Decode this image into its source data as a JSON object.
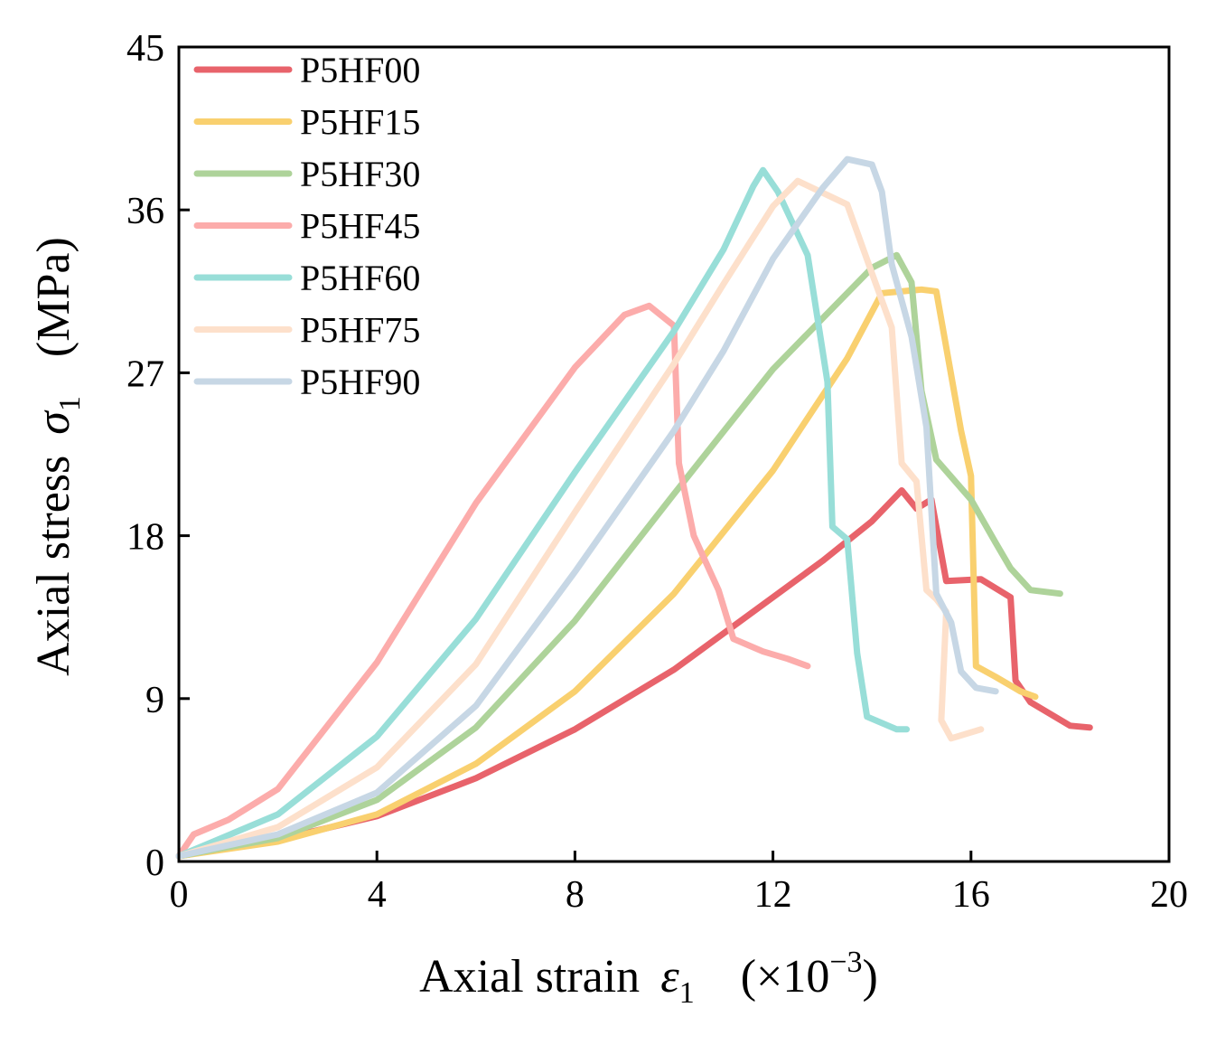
{
  "chart_data": {
    "type": "line",
    "title": "",
    "xlabel": {
      "prefix": "Axial strain",
      "symbol": "ε",
      "subscript": "1",
      "unit": "(×10",
      "unit_exp": "−3",
      "unit_close": ")"
    },
    "ylabel": {
      "prefix": "Axial stress",
      "symbol": "σ",
      "subscript": "1",
      "unit": "(MPa)"
    },
    "xlim": [
      0,
      20
    ],
    "ylim": [
      0,
      45
    ],
    "xticks": [
      0,
      4,
      8,
      12,
      16,
      20
    ],
    "yticks": [
      0,
      9,
      18,
      27,
      36,
      45
    ],
    "grid": false,
    "legend_position": "top-left",
    "series": [
      {
        "name": "P5HF00",
        "color": "#e8636b",
        "points": [
          [
            0,
            0.3
          ],
          [
            2,
            1.2
          ],
          [
            4,
            2.5
          ],
          [
            6,
            4.6
          ],
          [
            8,
            7.3
          ],
          [
            10,
            10.6
          ],
          [
            12,
            14.6
          ],
          [
            13,
            16.6
          ],
          [
            14,
            18.8
          ],
          [
            14.6,
            20.5
          ],
          [
            14.9,
            19.5
          ],
          [
            15.2,
            20.0
          ],
          [
            15.5,
            15.5
          ],
          [
            16.2,
            15.6
          ],
          [
            16.8,
            14.6
          ],
          [
            16.9,
            10.0
          ],
          [
            17.2,
            8.8
          ],
          [
            18.0,
            7.5
          ],
          [
            18.4,
            7.4
          ]
        ]
      },
      {
        "name": "P5HF15",
        "color": "#f9d06f",
        "points": [
          [
            0,
            0.3
          ],
          [
            2,
            1.1
          ],
          [
            4,
            2.6
          ],
          [
            6,
            5.4
          ],
          [
            8,
            9.4
          ],
          [
            10,
            14.8
          ],
          [
            12,
            21.6
          ],
          [
            13.5,
            27.8
          ],
          [
            14.2,
            31.4
          ],
          [
            15.0,
            31.6
          ],
          [
            15.3,
            31.5
          ],
          [
            15.8,
            23.8
          ],
          [
            16.0,
            21.3
          ],
          [
            16.1,
            10.8
          ],
          [
            16.5,
            10.2
          ],
          [
            17.0,
            9.4
          ],
          [
            17.3,
            9.1
          ]
        ]
      },
      {
        "name": "P5HF30",
        "color": "#aed39a",
        "points": [
          [
            0,
            0.3
          ],
          [
            2,
            1.3
          ],
          [
            4,
            3.4
          ],
          [
            6,
            7.4
          ],
          [
            8,
            13.3
          ],
          [
            10,
            20.3
          ],
          [
            12,
            27.2
          ],
          [
            13,
            30.0
          ],
          [
            14,
            32.8
          ],
          [
            14.5,
            33.5
          ],
          [
            14.8,
            32.0
          ],
          [
            15.0,
            26.0
          ],
          [
            15.3,
            22.2
          ],
          [
            16.0,
            20.0
          ],
          [
            16.5,
            17.6
          ],
          [
            16.8,
            16.2
          ],
          [
            17.2,
            15.0
          ],
          [
            17.8,
            14.8
          ]
        ]
      },
      {
        "name": "P5HF45",
        "color": "#fcacab",
        "points": [
          [
            0,
            0.3
          ],
          [
            0.3,
            1.5
          ],
          [
            1,
            2.3
          ],
          [
            2,
            4.0
          ],
          [
            4,
            11.0
          ],
          [
            6,
            19.8
          ],
          [
            8,
            27.3
          ],
          [
            9,
            30.2
          ],
          [
            9.5,
            30.7
          ],
          [
            10,
            29.6
          ],
          [
            10.1,
            22.0
          ],
          [
            10.4,
            18.0
          ],
          [
            10.9,
            15.0
          ],
          [
            11.2,
            12.3
          ],
          [
            11.8,
            11.6
          ],
          [
            12.3,
            11.2
          ],
          [
            12.7,
            10.8
          ]
        ]
      },
      {
        "name": "P5HF60",
        "color": "#98ded8",
        "points": [
          [
            0,
            0.3
          ],
          [
            2,
            2.6
          ],
          [
            4,
            6.9
          ],
          [
            6,
            13.4
          ],
          [
            8,
            21.5
          ],
          [
            10,
            29.3
          ],
          [
            11,
            33.8
          ],
          [
            11.6,
            37.3
          ],
          [
            11.8,
            38.2
          ],
          [
            12.1,
            37.0
          ],
          [
            12.7,
            33.5
          ],
          [
            13.1,
            26.5
          ],
          [
            13.2,
            18.5
          ],
          [
            13.5,
            17.8
          ],
          [
            13.7,
            11.5
          ],
          [
            13.9,
            8.0
          ],
          [
            14.5,
            7.3
          ],
          [
            14.7,
            7.3
          ]
        ]
      },
      {
        "name": "P5HF75",
        "color": "#fde0cb",
        "points": [
          [
            0,
            0.3
          ],
          [
            2,
            1.9
          ],
          [
            4,
            5.2
          ],
          [
            6,
            10.9
          ],
          [
            8,
            19.3
          ],
          [
            10,
            27.5
          ],
          [
            11,
            31.9
          ],
          [
            12,
            36.2
          ],
          [
            12.5,
            37.6
          ],
          [
            13.5,
            36.3
          ],
          [
            14.0,
            32.5
          ],
          [
            14.4,
            29.5
          ],
          [
            14.6,
            22.0
          ],
          [
            14.9,
            21.0
          ],
          [
            15.1,
            15.0
          ],
          [
            15.3,
            14.5
          ],
          [
            15.5,
            13.8
          ],
          [
            15.4,
            7.8
          ],
          [
            15.6,
            6.8
          ],
          [
            16.2,
            7.3
          ]
        ]
      },
      {
        "name": "P5HF90",
        "color": "#c7d7e5",
        "points": [
          [
            0,
            0.3
          ],
          [
            2,
            1.5
          ],
          [
            4,
            3.8
          ],
          [
            6,
            8.6
          ],
          [
            8,
            16.0
          ],
          [
            10,
            23.8
          ],
          [
            11,
            28.2
          ],
          [
            12,
            33.3
          ],
          [
            13,
            37.2
          ],
          [
            13.5,
            38.8
          ],
          [
            14.0,
            38.5
          ],
          [
            14.2,
            37.0
          ],
          [
            14.4,
            33.0
          ],
          [
            14.8,
            29.0
          ],
          [
            15.1,
            24.0
          ],
          [
            15.3,
            14.8
          ],
          [
            15.6,
            13.2
          ],
          [
            15.8,
            10.5
          ],
          [
            16.1,
            9.6
          ],
          [
            16.5,
            9.4
          ]
        ]
      }
    ]
  }
}
